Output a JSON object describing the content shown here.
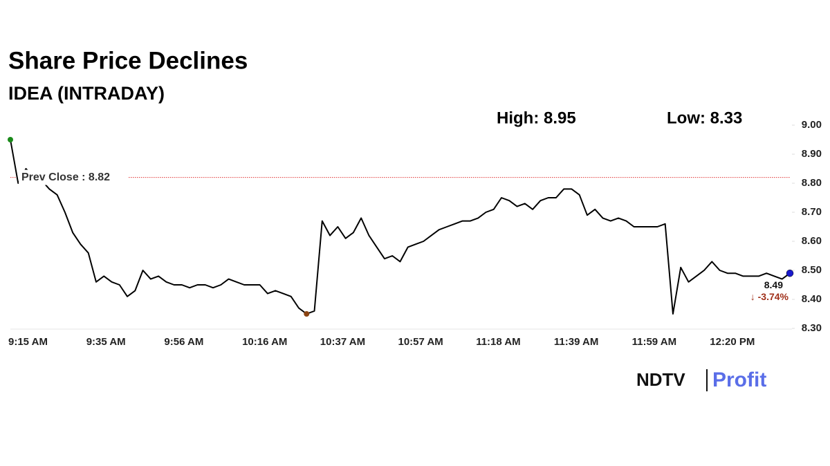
{
  "chart_data": {
    "type": "line",
    "title": "Share Price Declines",
    "subtitle": "IDEA (INTRADAY)",
    "high_label": "High: 8.95",
    "low_label": "Low: 8.33",
    "prev_close": 8.82,
    "prev_close_label": "Prev Close : 8.82",
    "prev_close_color": "#e03030",
    "last_label": "8.49",
    "change_label": "↓ -3.74%",
    "change_color": "#a0301a",
    "color": "#000000",
    "high_color": "#1a8a1a",
    "low_color": "#8b4513",
    "last_color": "#1a1acc",
    "logo": [
      "NDTV",
      "Profit"
    ],
    "categories": [
      "9:15 AM",
      null,
      null,
      null,
      null,
      null,
      null,
      null,
      null,
      null,
      "9:35 AM",
      null,
      null,
      null,
      null,
      null,
      null,
      null,
      null,
      null,
      "9:56 AM",
      null,
      null,
      null,
      null,
      null,
      null,
      null,
      null,
      null,
      "10:16 AM",
      null,
      null,
      null,
      null,
      null,
      null,
      null,
      null,
      null,
      "10:37 AM",
      null,
      null,
      null,
      null,
      null,
      null,
      null,
      null,
      null,
      "10:57 AM",
      null,
      null,
      null,
      null,
      null,
      null,
      null,
      null,
      null,
      "11:18 AM",
      null,
      null,
      null,
      null,
      null,
      null,
      null,
      null,
      null,
      "11:39 AM",
      null,
      null,
      null,
      null,
      null,
      null,
      null,
      null,
      null,
      "11:59 AM",
      null,
      null,
      null,
      null,
      null,
      null,
      null,
      null,
      null,
      "12:20 PM",
      null,
      null,
      null,
      null,
      null,
      null,
      null,
      null,
      null,
      null
    ],
    "values": [
      8.95,
      8.8,
      8.85,
      8.82,
      8.81,
      8.78,
      8.76,
      8.7,
      8.63,
      8.59,
      8.56,
      8.46,
      8.48,
      8.46,
      8.45,
      8.41,
      8.43,
      8.5,
      8.47,
      8.48,
      8.46,
      8.45,
      8.45,
      8.44,
      8.45,
      8.45,
      8.44,
      8.45,
      8.47,
      8.46,
      8.45,
      8.45,
      8.45,
      8.42,
      8.43,
      8.42,
      8.41,
      8.37,
      8.35,
      8.36,
      8.67,
      8.62,
      8.65,
      8.61,
      8.63,
      8.68,
      8.62,
      8.58,
      8.54,
      8.55,
      8.53,
      8.58,
      8.59,
      8.6,
      8.62,
      8.64,
      8.65,
      8.66,
      8.67,
      8.67,
      8.68,
      8.7,
      8.71,
      8.75,
      8.74,
      8.72,
      8.73,
      8.71,
      8.74,
      8.75,
      8.75,
      8.78,
      8.78,
      8.76,
      8.69,
      8.71,
      8.68,
      8.67,
      8.68,
      8.67,
      8.65,
      8.65,
      8.65,
      8.65,
      8.66,
      8.35,
      8.51,
      8.46,
      8.48,
      8.5,
      8.53,
      8.5,
      8.49,
      8.49,
      8.48,
      8.48,
      8.48,
      8.49,
      8.48,
      8.47,
      8.49
    ],
    "ylim": [
      8.3,
      9.0
    ],
    "yticks": [
      {
        "value": 8.3,
        "label": "8.30"
      },
      {
        "value": 8.4,
        "label": "8.40"
      },
      {
        "value": 8.5,
        "label": "8.50"
      },
      {
        "value": 8.6,
        "label": "8.60"
      },
      {
        "value": 8.7,
        "label": "8.70"
      },
      {
        "value": 8.8,
        "label": "8.80"
      },
      {
        "value": 8.9,
        "label": "8.90"
      },
      {
        "value": 9.0,
        "label": "9.00"
      }
    ]
  }
}
